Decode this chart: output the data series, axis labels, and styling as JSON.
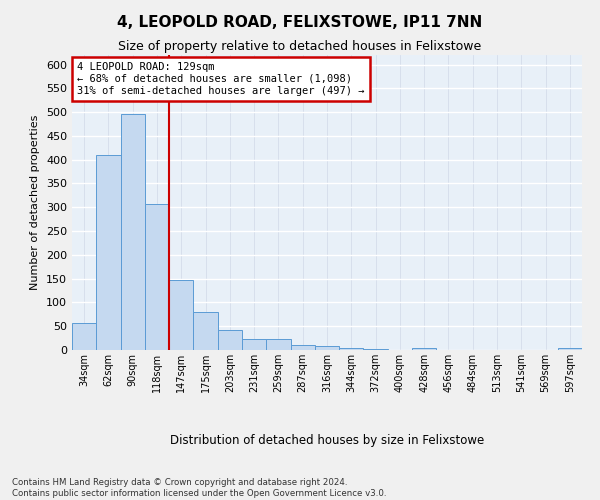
{
  "title": "4, LEOPOLD ROAD, FELIXSTOWE, IP11 7NN",
  "subtitle": "Size of property relative to detached houses in Felixstowe",
  "xlabel": "Distribution of detached houses by size in Felixstowe",
  "ylabel": "Number of detached properties",
  "bar_color": "#c5d9f0",
  "bar_edge_color": "#5b9bd5",
  "bar_values": [
    57,
    410,
    495,
    307,
    148,
    80,
    43,
    24,
    24,
    10,
    8,
    4,
    3,
    0,
    5,
    0,
    0,
    0,
    0,
    0,
    5
  ],
  "bin_labels": [
    "34sqm",
    "62sqm",
    "90sqm",
    "118sqm",
    "147sqm",
    "175sqm",
    "203sqm",
    "231sqm",
    "259sqm",
    "287sqm",
    "316sqm",
    "344sqm",
    "372sqm",
    "400sqm",
    "428sqm",
    "456sqm",
    "484sqm",
    "513sqm",
    "541sqm",
    "569sqm",
    "597sqm"
  ],
  "red_line_x": 3.5,
  "annotation_line1": "4 LEOPOLD ROAD: 129sqm",
  "annotation_line2": "← 68% of detached houses are smaller (1,098)",
  "annotation_line3": "31% of semi-detached houses are larger (497) →",
  "annotation_box_color": "#ffffff",
  "annotation_border_color": "#cc0000",
  "ylim": [
    0,
    620
  ],
  "yticks": [
    0,
    50,
    100,
    150,
    200,
    250,
    300,
    350,
    400,
    450,
    500,
    550,
    600
  ],
  "footer_line1": "Contains HM Land Registry data © Crown copyright and database right 2024.",
  "footer_line2": "Contains public sector information licensed under the Open Government Licence v3.0.",
  "plot_bg_color": "#e8f0f8",
  "fig_bg_color": "#f0f0f0"
}
